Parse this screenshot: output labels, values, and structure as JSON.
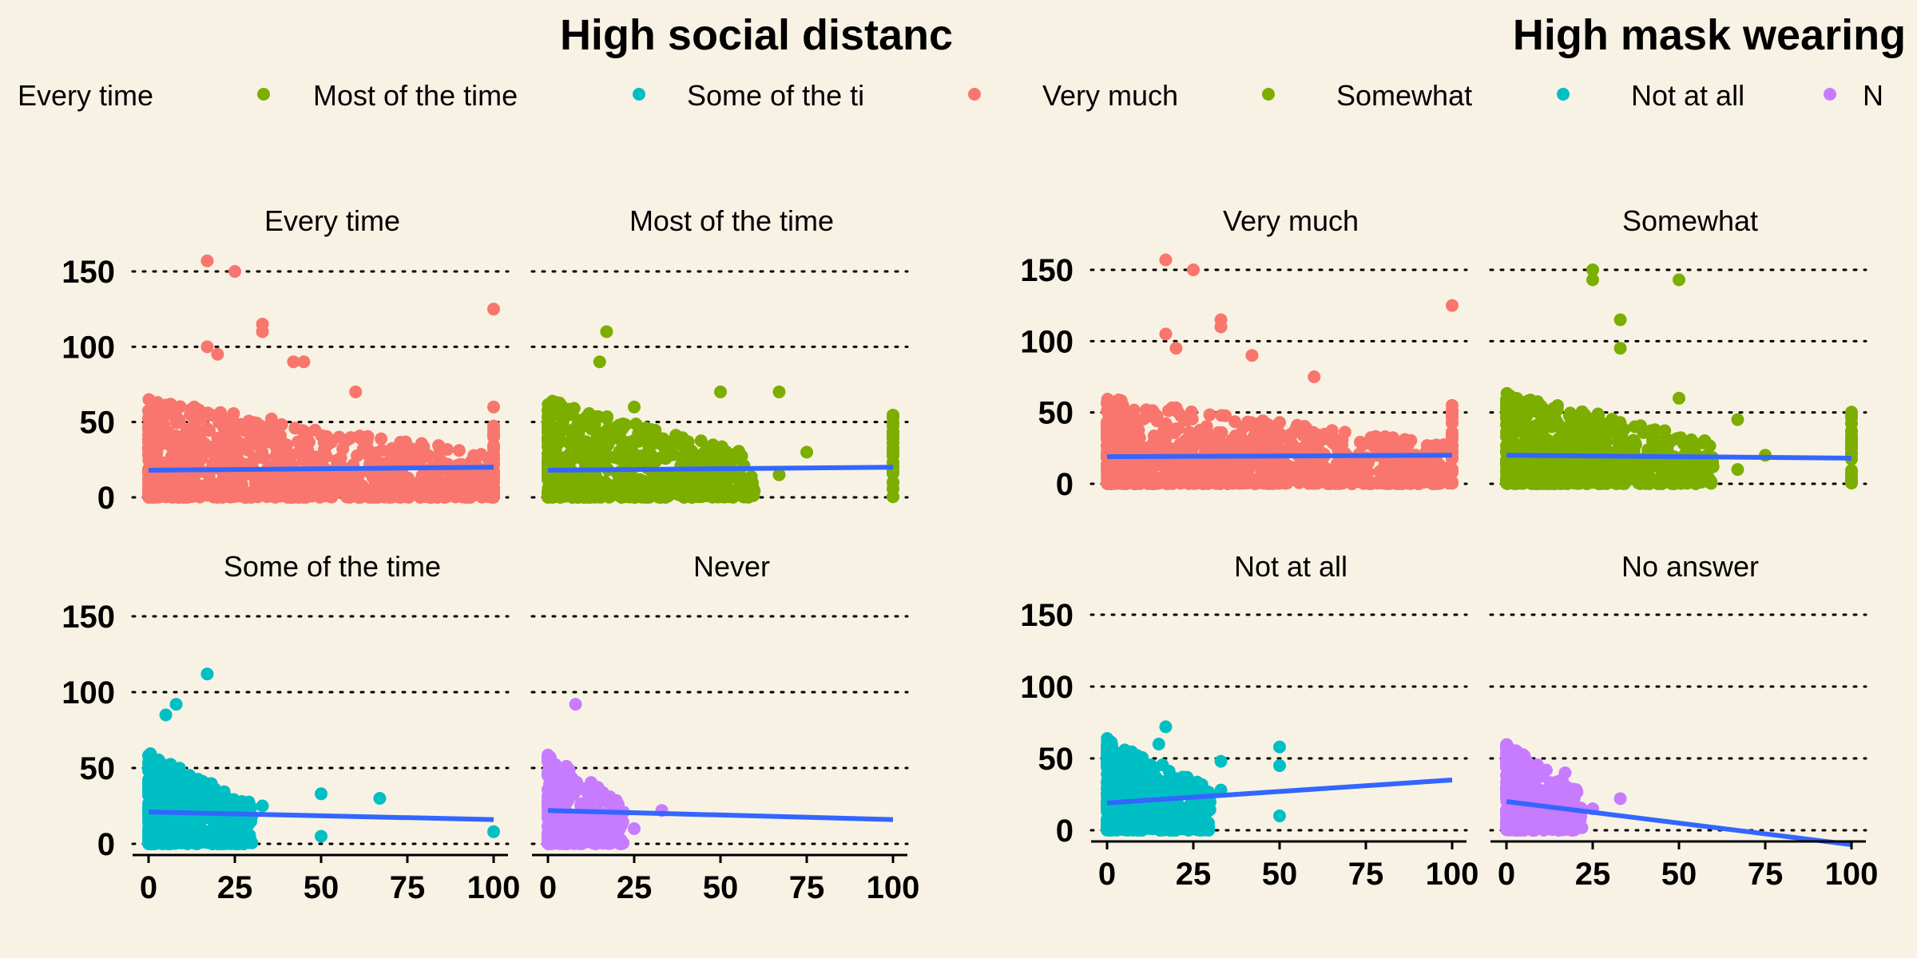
{
  "chart_data": [
    {
      "type": "scatter",
      "title": "High social distanc",
      "legend": {
        "placement": "top",
        "entries": [
          {
            "label": "Every time",
            "color": "#f8766d"
          },
          {
            "label": "Most of the time",
            "color": "#7cae00"
          },
          {
            "label": "Some of the ti",
            "color": "#00bfc4"
          }
        ]
      },
      "xlim": [
        0,
        100
      ],
      "ylim": [
        0,
        150
      ],
      "xticks": [
        "0",
        "25",
        "50",
        "75",
        "100"
      ],
      "yticks": [
        "0",
        "50",
        "100",
        "150"
      ],
      "grid": true,
      "panels": [
        {
          "label": "Every time",
          "color": "#f8766d",
          "trend": [
            [
              0,
              18
            ],
            [
              100,
              20
            ]
          ],
          "spread": "wide",
          "peak": 65,
          "outliers": [
            [
              17,
              157
            ],
            [
              25,
              150
            ],
            [
              33,
              115
            ],
            [
              33,
              110
            ],
            [
              100,
              125
            ],
            [
              17,
              100
            ],
            [
              20,
              95
            ],
            [
              42,
              90
            ],
            [
              45,
              90
            ],
            [
              60,
              70
            ],
            [
              100,
              60
            ]
          ]
        },
        {
          "label": "Most of the time",
          "color": "#7cae00",
          "trend": [
            [
              0,
              18
            ],
            [
              100,
              20
            ]
          ],
          "spread": "medium",
          "peak": 65,
          "outliers": [
            [
              17,
              110
            ],
            [
              15,
              90
            ],
            [
              25,
              60
            ],
            [
              50,
              70
            ],
            [
              67,
              70
            ],
            [
              100,
              40
            ],
            [
              75,
              30
            ],
            [
              67,
              15
            ]
          ]
        },
        {
          "label": "Some of the time",
          "color": "#00bfc4",
          "trend": [
            [
              0,
              21
            ],
            [
              100,
              16
            ]
          ],
          "spread": "narrow",
          "peak": 60,
          "outliers": [
            [
              17,
              112
            ],
            [
              5,
              85
            ],
            [
              8,
              92
            ],
            [
              33,
              25
            ],
            [
              50,
              33
            ],
            [
              67,
              30
            ],
            [
              100,
              8
            ],
            [
              50,
              5
            ]
          ]
        },
        {
          "label": "Never",
          "color": "#c77cff",
          "trend": [
            [
              0,
              22
            ],
            [
              100,
              16
            ]
          ],
          "spread": "small",
          "peak": 60,
          "outliers": [
            [
              8,
              92
            ],
            [
              33,
              22
            ],
            [
              25,
              10
            ],
            [
              20,
              5
            ]
          ]
        }
      ]
    },
    {
      "type": "scatter",
      "title": "High mask wearing",
      "legend": {
        "placement": "top",
        "entries": [
          {
            "label": "Very much",
            "color": "#f8766d"
          },
          {
            "label": "Somewhat",
            "color": "#7cae00"
          },
          {
            "label": "Not at all",
            "color": "#00bfc4"
          },
          {
            "label": "N",
            "color": "#c77cff"
          }
        ]
      },
      "xlim": [
        0,
        100
      ],
      "ylim": [
        0,
        150
      ],
      "xticks": [
        "0",
        "25",
        "50",
        "75",
        "100"
      ],
      "yticks": [
        "0",
        "50",
        "100",
        "150"
      ],
      "grid": true,
      "panels": [
        {
          "label": "Very much",
          "color": "#f8766d",
          "trend": [
            [
              0,
              19
            ],
            [
              100,
              20
            ]
          ],
          "spread": "wide",
          "peak": 60,
          "outliers": [
            [
              17,
              157
            ],
            [
              25,
              150
            ],
            [
              33,
              115
            ],
            [
              33,
              110
            ],
            [
              100,
              125
            ],
            [
              17,
              105
            ],
            [
              20,
              95
            ],
            [
              42,
              90
            ],
            [
              60,
              75
            ],
            [
              100,
              55
            ]
          ]
        },
        {
          "label": "Somewhat",
          "color": "#7cae00",
          "trend": [
            [
              0,
              20
            ],
            [
              100,
              18
            ]
          ],
          "spread": "medium",
          "peak": 65,
          "outliers": [
            [
              25,
              150
            ],
            [
              25,
              143
            ],
            [
              50,
              143
            ],
            [
              33,
              115
            ],
            [
              33,
              95
            ],
            [
              50,
              60
            ],
            [
              67,
              45
            ],
            [
              100,
              48
            ],
            [
              67,
              10
            ],
            [
              75,
              20
            ]
          ]
        },
        {
          "label": "Not at all",
          "color": "#00bfc4",
          "trend": [
            [
              0,
              19
            ],
            [
              100,
              35
            ]
          ],
          "spread": "narrow",
          "peak": 65,
          "outliers": [
            [
              17,
              72
            ],
            [
              15,
              60
            ],
            [
              33,
              48
            ],
            [
              50,
              58
            ],
            [
              50,
              45
            ],
            [
              33,
              28
            ],
            [
              50,
              10
            ],
            [
              25,
              10
            ]
          ]
        },
        {
          "label": "No answer",
          "color": "#c77cff",
          "trend": [
            [
              0,
              20
            ],
            [
              100,
              -10
            ]
          ],
          "spread": "small",
          "peak": 60,
          "outliers": [
            [
              17,
              40
            ],
            [
              33,
              22
            ],
            [
              25,
              15
            ]
          ]
        }
      ]
    }
  ]
}
